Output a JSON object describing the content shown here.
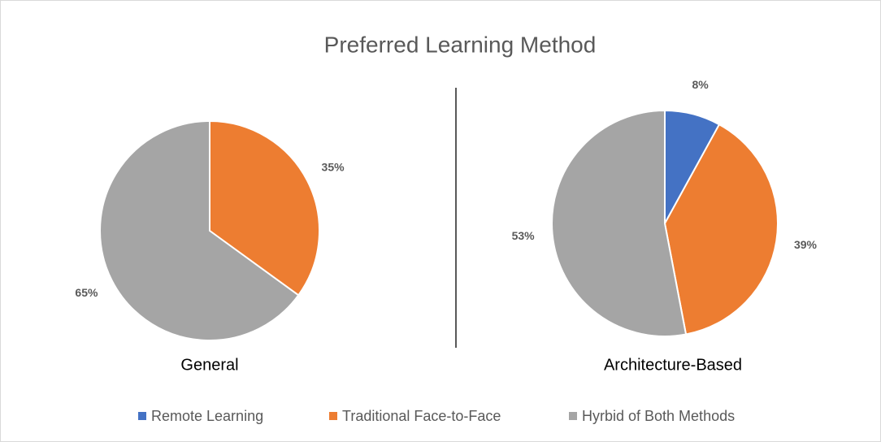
{
  "title": "Preferred Learning Method",
  "chart_data": [
    {
      "type": "pie",
      "title": "General",
      "categories": [
        "Traditional Face-to-Face",
        "Hyrbid of Both Methods"
      ],
      "values": [
        35,
        65
      ],
      "value_labels": [
        "35%",
        "65%"
      ],
      "colors": [
        "#ed7d31",
        "#a5a5a5"
      ]
    },
    {
      "type": "pie",
      "title": "Architecture-Based",
      "categories": [
        "Remote Learning",
        "Traditional Face-to-Face",
        "Hyrbid of Both Methods"
      ],
      "values": [
        8,
        39,
        53
      ],
      "value_labels": [
        "8%",
        "39%",
        "53%"
      ],
      "colors": [
        "#4472c4",
        "#ed7d31",
        "#a5a5a5"
      ]
    }
  ]
}
